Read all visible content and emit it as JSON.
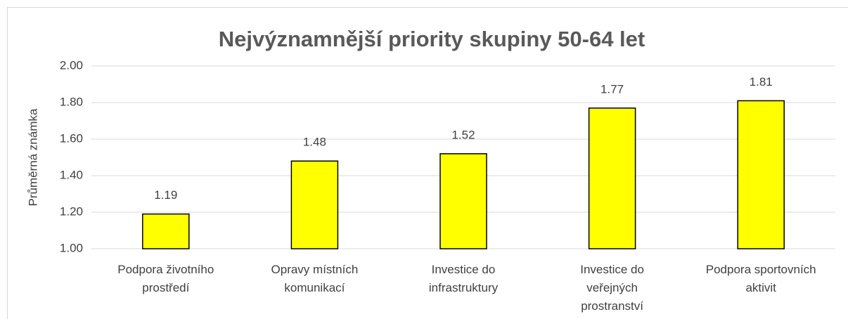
{
  "chart_data": {
    "type": "bar",
    "title": "Nejvýznamnější priority skupiny 50-64 let",
    "y_label": "Průměrná známka",
    "categories": [
      "Podpora životního\nprostředí",
      "Opravy místních\nkomunikací",
      "Investice do\ninfrastruktury",
      "Investice do\nveřejných\nprostranství",
      "Podpora sportovních\naktivit"
    ],
    "values": [
      1.19,
      1.48,
      1.52,
      1.77,
      1.81
    ],
    "color": "#ffff00",
    "ylim": [
      1,
      2
    ],
    "yticks": [
      {
        "value": 1,
        "label": "1.00"
      },
      {
        "value": 1.2,
        "label": "1.20"
      },
      {
        "value": 1.4,
        "label": "1.40"
      },
      {
        "value": 1.6,
        "label": "1.60"
      },
      {
        "value": 1.8,
        "label": "1.80"
      },
      {
        "value": 2,
        "label": "2.00"
      }
    ],
    "grid": true
  }
}
